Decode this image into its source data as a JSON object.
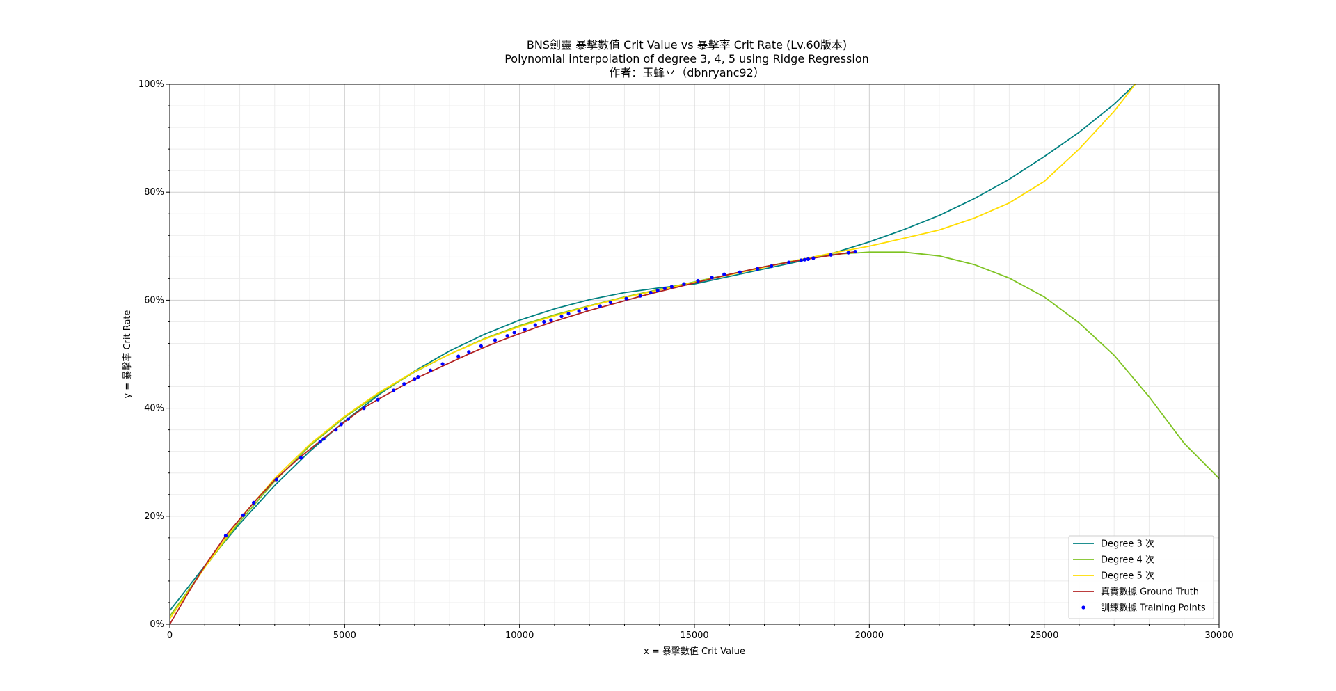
{
  "chart_data": {
    "type": "line",
    "title_lines": [
      "BNS劍靈 暴擊數值 Crit Value vs 暴擊率 Crit Rate (Lv.60版本)",
      "Polynomial interpolation of degree 3, 4, 5 using Ridge Regression",
      "作者：玉蜂丷（dbnryanc92）"
    ],
    "xlabel": "x = 暴擊數值 Crit Value",
    "ylabel": "y = 暴擊率 Crit Rate",
    "xlim": [
      0,
      30000
    ],
    "ylim": [
      0,
      100
    ],
    "x_ticks": [
      0,
      5000,
      10000,
      15000,
      20000,
      25000,
      30000
    ],
    "x_tick_labels": [
      "0",
      "5000",
      "10000",
      "15000",
      "20000",
      "25000",
      "30000"
    ],
    "y_ticks": [
      0,
      20,
      40,
      60,
      80,
      100
    ],
    "y_tick_labels": [
      "0%",
      "20%",
      "40%",
      "60%",
      "80%",
      "100%"
    ],
    "grid": true,
    "legend_position": "bottom-right",
    "series": [
      {
        "name": "Degree 3 次",
        "color": "#008080",
        "x": [
          0,
          1000,
          2000,
          3000,
          4000,
          5000,
          6000,
          7000,
          8000,
          9000,
          10000,
          11000,
          12000,
          13000,
          14000,
          15000,
          16000,
          17000,
          18000,
          19000,
          20000,
          21000,
          22000,
          23000,
          24000,
          25000,
          26000,
          27000,
          27600
        ],
        "y": [
          2.5,
          10.8,
          18.6,
          25.7,
          32.0,
          37.6,
          42.6,
          46.9,
          50.6,
          53.7,
          56.3,
          58.4,
          60.1,
          61.4,
          62.3,
          63.0,
          64.4,
          65.8,
          67.2,
          68.8,
          70.8,
          73.1,
          75.7,
          78.8,
          82.4,
          86.6,
          91.1,
          96.3,
          100.0
        ]
      },
      {
        "name": "Degree 4 次",
        "color": "#7ec322",
        "x": [
          0,
          1000,
          2000,
          3000,
          4000,
          5000,
          6000,
          7000,
          8000,
          9000,
          10000,
          11000,
          12000,
          13000,
          14000,
          15000,
          16000,
          17000,
          18000,
          19000,
          20000,
          21000,
          22000,
          23000,
          24000,
          25000,
          26000,
          27000,
          28000,
          29000,
          30000
        ],
        "y": [
          1.5,
          10.5,
          19.0,
          26.5,
          33.0,
          38.3,
          42.8,
          46.7,
          50.0,
          52.9,
          55.3,
          57.3,
          59.0,
          60.6,
          62.0,
          63.4,
          64.8,
          66.2,
          67.5,
          68.5,
          68.9,
          68.9,
          68.2,
          66.6,
          64.1,
          60.6,
          55.8,
          49.8,
          42.1,
          33.5,
          27.0
        ]
      },
      {
        "name": "Degree 5 次",
        "color": "#ffdd00",
        "x": [
          0,
          1000,
          2000,
          3000,
          4000,
          5000,
          6000,
          7000,
          8000,
          9000,
          10000,
          11000,
          12000,
          13000,
          14000,
          15000,
          16000,
          17000,
          18000,
          19000,
          20000,
          21000,
          22000,
          23000,
          24000,
          25000,
          26000,
          27000,
          27600
        ],
        "y": [
          1.0,
          10.5,
          19.5,
          27.0,
          33.3,
          38.5,
          43.0,
          46.8,
          50.0,
          52.8,
          55.1,
          57.1,
          58.9,
          60.5,
          61.9,
          63.3,
          64.7,
          66.1,
          67.5,
          68.8,
          70.0,
          71.5,
          73.0,
          75.2,
          78.0,
          82.0,
          88.0,
          95.0,
          100.0
        ]
      },
      {
        "name": "真實數據 Ground Truth",
        "color": "#b22222",
        "x": [
          0,
          500,
          1000,
          1600,
          2100,
          2400,
          3000,
          3700,
          4300,
          4800,
          5500,
          6000,
          6500,
          7000,
          7500,
          8000,
          8500,
          9000,
          9500,
          10000,
          10500,
          11000,
          11500,
          12000,
          12500,
          13000,
          13500,
          14000,
          14500,
          15000,
          15500,
          16000,
          16500,
          17000,
          17500,
          18000,
          18500,
          19000,
          19600
        ],
        "y": [
          0,
          5.5,
          10.8,
          16.4,
          20.2,
          22.5,
          26.7,
          30.8,
          33.9,
          36.5,
          39.9,
          41.8,
          43.6,
          45.4,
          46.9,
          48.4,
          49.9,
          51.3,
          52.6,
          53.8,
          55.0,
          56.1,
          57.1,
          58.1,
          59.0,
          59.9,
          60.8,
          61.6,
          62.4,
          63.2,
          64.0,
          64.8,
          65.5,
          66.2,
          66.8,
          67.4,
          67.9,
          68.4,
          69.0
        ]
      }
    ],
    "training_points": {
      "name": "訓練數據 Training Points",
      "color": "#0000ff",
      "x": [
        1600,
        2100,
        2400,
        3050,
        3750,
        4300,
        4400,
        4750,
        4900,
        5100,
        5550,
        5950,
        6400,
        6700,
        7000,
        7100,
        7450,
        7800,
        8250,
        8550,
        8900,
        9300,
        9650,
        9850,
        10150,
        10450,
        10700,
        10900,
        11200,
        11400,
        11700,
        11900,
        12300,
        12600,
        13050,
        13450,
        13750,
        13950,
        14150,
        14350,
        14700,
        15100,
        15500,
        15850,
        16300,
        16800,
        17200,
        17700,
        18050,
        18150,
        18250,
        18400,
        18900,
        19400,
        19600
      ],
      "y": [
        16.4,
        20.2,
        22.5,
        26.8,
        30.8,
        33.8,
        34.3,
        36.0,
        37.0,
        38.0,
        40.0,
        41.6,
        43.3,
        44.5,
        45.4,
        45.8,
        47.0,
        48.2,
        49.6,
        50.4,
        51.5,
        52.6,
        53.4,
        54.0,
        54.6,
        55.4,
        56.0,
        56.3,
        57.0,
        57.5,
        58.0,
        58.4,
        58.9,
        59.6,
        60.3,
        60.8,
        61.4,
        61.8,
        62.2,
        62.5,
        63.0,
        63.6,
        64.2,
        64.8,
        65.2,
        65.8,
        66.3,
        67.0,
        67.4,
        67.5,
        67.6,
        67.8,
        68.4,
        68.8,
        69.0
      ]
    }
  }
}
